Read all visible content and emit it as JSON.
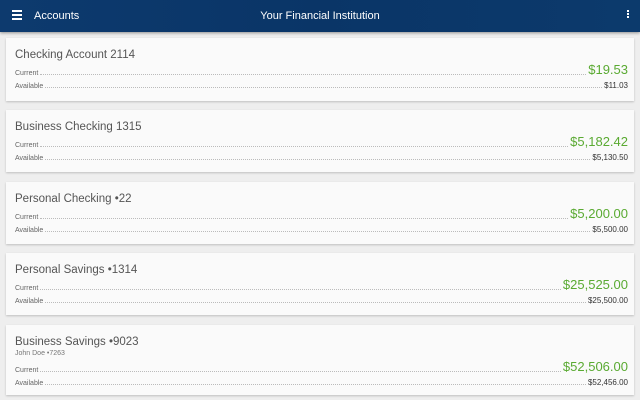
{
  "header": {
    "title": "Accounts",
    "institution": "Your Financial Institution",
    "menu_icon": "hamburger-icon",
    "more_icon": "more-vert-icon"
  },
  "colors": {
    "header": "#0a3567",
    "current_balance": "#5aaa32"
  },
  "labels": {
    "current": "Current",
    "available": "Available"
  },
  "accounts": [
    {
      "name": "Checking Account 2114",
      "current": "$19.53",
      "available": "$11.03"
    },
    {
      "name": "Business Checking 1315",
      "current": "$5,182.42",
      "available": "$5,130.50"
    },
    {
      "name": "Personal Checking •22",
      "current": "$5,200.00",
      "available": "$5,500.00"
    },
    {
      "name": "Personal Savings •1314",
      "current": "$25,525.00",
      "available": "$25,500.00"
    },
    {
      "name": "Business Savings •9023",
      "owner": "John Doe •7263",
      "current": "$52,506.00",
      "available": "$52,456.00"
    }
  ]
}
